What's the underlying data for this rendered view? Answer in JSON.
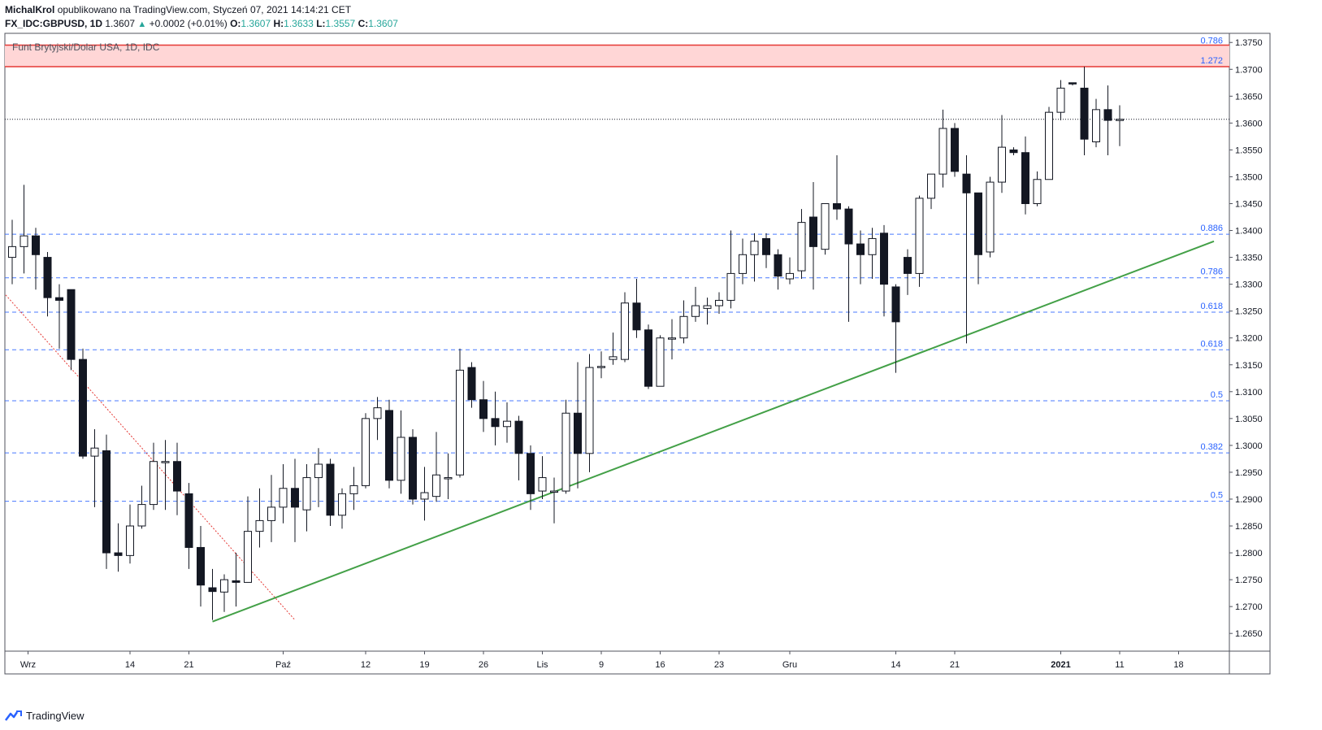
{
  "header": {
    "author": "MichalKrol",
    "published": "opublikowano na TradingView.com, Styczeń 07, 2021 14:14:21 CET",
    "symbol": "FX_IDC:GBPUSD, 1D",
    "last": "1.3607",
    "change": "+0.0002 (+0.01%)",
    "o_label": "O:",
    "o": "1.3607",
    "h_label": "H:",
    "h": "1.3633",
    "l_label": "L:",
    "l": "1.3557",
    "c_label": "C:",
    "c": "1.3607"
  },
  "footer": {
    "brand": "TradingView"
  },
  "chart_data": {
    "type": "candlestick",
    "title": "Funt Brytyjski/Dolar USA, 1D, IDC",
    "ylim": [
      1.2617,
      1.3767
    ],
    "y_ticks": [
      "1.3750",
      "1.3700",
      "1.3650",
      "1.3600",
      "1.3550",
      "1.3500",
      "1.3450",
      "1.3400",
      "1.3350",
      "1.3300",
      "1.3250",
      "1.3200",
      "1.3150",
      "1.3100",
      "1.3050",
      "1.3000",
      "1.2950",
      "1.2900",
      "1.2850",
      "1.2800",
      "1.2750",
      "1.2700",
      "1.2650"
    ],
    "x_ticks": [
      {
        "label": "Wrz",
        "bar": 1
      },
      {
        "label": "14",
        "bar": 10
      },
      {
        "label": "21",
        "bar": 15
      },
      {
        "label": "Paź",
        "bar": 23
      },
      {
        "label": "12",
        "bar": 30
      },
      {
        "label": "19",
        "bar": 35
      },
      {
        "label": "26",
        "bar": 40
      },
      {
        "label": "Lis",
        "bar": 45
      },
      {
        "label": "9",
        "bar": 50
      },
      {
        "label": "16",
        "bar": 55
      },
      {
        "label": "23",
        "bar": 60
      },
      {
        "label": "Gru",
        "bar": 66
      },
      {
        "label": "14",
        "bar": 75
      },
      {
        "label": "21",
        "bar": 80
      },
      {
        "label": "2021",
        "bar": 89
      },
      {
        "label": "11",
        "bar": 94
      },
      {
        "label": "18",
        "bar": 99
      }
    ],
    "fib_levels": [
      {
        "label": "0.886",
        "price": 1.3393
      },
      {
        "label": "0.786",
        "price": 1.3312
      },
      {
        "label": "0.618",
        "price": 1.3248
      },
      {
        "label": "0.618",
        "price": 1.3178
      },
      {
        "label": "0.5",
        "price": 1.3083
      },
      {
        "label": "0.382",
        "price": 1.2986
      },
      {
        "label": "0.5",
        "price": 1.2896
      }
    ],
    "resistance_zone": {
      "top_label": "0.786",
      "bottom_label": "1.272",
      "top": 1.3745,
      "bottom": 1.3705
    },
    "current_price": 1.3607,
    "uptrend_line": {
      "start": {
        "bar": 17,
        "price": 1.2672
      },
      "end": {
        "bar": 102,
        "price": 1.338
      }
    },
    "downtrend_line": {
      "start": {
        "bar": 0,
        "price": 1.328
      },
      "end": {
        "bar": 24,
        "price": 1.2675
      }
    },
    "candles": [
      {
        "o": 1.335,
        "h": 1.342,
        "l": 1.33,
        "c": 1.337
      },
      {
        "o": 1.337,
        "h": 1.3485,
        "l": 1.332,
        "c": 1.339
      },
      {
        "o": 1.339,
        "h": 1.3405,
        "l": 1.329,
        "c": 1.3355
      },
      {
        "o": 1.335,
        "h": 1.336,
        "l": 1.324,
        "c": 1.3275
      },
      {
        "o": 1.3275,
        "h": 1.33,
        "l": 1.318,
        "c": 1.327
      },
      {
        "o": 1.329,
        "h": 1.329,
        "l": 1.314,
        "c": 1.316
      },
      {
        "o": 1.316,
        "h": 1.318,
        "l": 1.2975,
        "c": 1.298
      },
      {
        "o": 1.298,
        "h": 1.303,
        "l": 1.2885,
        "c": 1.2995
      },
      {
        "o": 1.299,
        "h": 1.302,
        "l": 1.277,
        "c": 1.28
      },
      {
        "o": 1.28,
        "h": 1.2855,
        "l": 1.2765,
        "c": 1.2795
      },
      {
        "o": 1.2795,
        "h": 1.289,
        "l": 1.278,
        "c": 1.285
      },
      {
        "o": 1.285,
        "h": 1.2925,
        "l": 1.2845,
        "c": 1.289
      },
      {
        "o": 1.289,
        "h": 1.3005,
        "l": 1.288,
        "c": 1.297
      },
      {
        "o": 1.297,
        "h": 1.301,
        "l": 1.288,
        "c": 1.297
      },
      {
        "o": 1.297,
        "h": 1.3005,
        "l": 1.287,
        "c": 1.2915
      },
      {
        "o": 1.291,
        "h": 1.293,
        "l": 1.277,
        "c": 1.281
      },
      {
        "o": 1.281,
        "h": 1.285,
        "l": 1.27,
        "c": 1.274
      },
      {
        "o": 1.2735,
        "h": 1.277,
        "l": 1.2675,
        "c": 1.2728
      },
      {
        "o": 1.2727,
        "h": 1.276,
        "l": 1.269,
        "c": 1.275
      },
      {
        "o": 1.2748,
        "h": 1.28,
        "l": 1.27,
        "c": 1.2745
      },
      {
        "o": 1.2745,
        "h": 1.2905,
        "l": 1.2745,
        "c": 1.284
      },
      {
        "o": 1.284,
        "h": 1.292,
        "l": 1.281,
        "c": 1.286
      },
      {
        "o": 1.286,
        "h": 1.2945,
        "l": 1.282,
        "c": 1.2885
      },
      {
        "o": 1.2885,
        "h": 1.2965,
        "l": 1.2855,
        "c": 1.292
      },
      {
        "o": 1.292,
        "h": 1.2975,
        "l": 1.282,
        "c": 1.2885
      },
      {
        "o": 1.288,
        "h": 1.2965,
        "l": 1.284,
        "c": 1.294
      },
      {
        "o": 1.294,
        "h": 1.2995,
        "l": 1.2885,
        "c": 1.2965
      },
      {
        "o": 1.2965,
        "h": 1.2975,
        "l": 1.285,
        "c": 1.287
      },
      {
        "o": 1.287,
        "h": 1.292,
        "l": 1.2845,
        "c": 1.291
      },
      {
        "o": 1.291,
        "h": 1.296,
        "l": 1.288,
        "c": 1.2925
      },
      {
        "o": 1.2925,
        "h": 1.306,
        "l": 1.292,
        "c": 1.305
      },
      {
        "o": 1.305,
        "h": 1.309,
        "l": 1.301,
        "c": 1.307
      },
      {
        "o": 1.3065,
        "h": 1.3085,
        "l": 1.292,
        "c": 1.2935
      },
      {
        "o": 1.2935,
        "h": 1.3065,
        "l": 1.291,
        "c": 1.3015
      },
      {
        "o": 1.3015,
        "h": 1.303,
        "l": 1.289,
        "c": 1.29
      },
      {
        "o": 1.29,
        "h": 1.296,
        "l": 1.286,
        "c": 1.2912
      },
      {
        "o": 1.2905,
        "h": 1.3025,
        "l": 1.2895,
        "c": 1.2945
      },
      {
        "o": 1.294,
        "h": 1.2985,
        "l": 1.29,
        "c": 1.294
      },
      {
        "o": 1.2945,
        "h": 1.318,
        "l": 1.294,
        "c": 1.314
      },
      {
        "o": 1.3145,
        "h": 1.3155,
        "l": 1.307,
        "c": 1.3085
      },
      {
        "o": 1.3085,
        "h": 1.312,
        "l": 1.3025,
        "c": 1.305
      },
      {
        "o": 1.305,
        "h": 1.31,
        "l": 1.3,
        "c": 1.3035
      },
      {
        "o": 1.3035,
        "h": 1.308,
        "l": 1.3005,
        "c": 1.3045
      },
      {
        "o": 1.3045,
        "h": 1.3055,
        "l": 1.2935,
        "c": 1.2985
      },
      {
        "o": 1.2985,
        "h": 1.3,
        "l": 1.288,
        "c": 1.291
      },
      {
        "o": 1.2915,
        "h": 1.298,
        "l": 1.29,
        "c": 1.294
      },
      {
        "o": 1.2915,
        "h": 1.294,
        "l": 1.2855,
        "c": 1.2915
      },
      {
        "o": 1.2915,
        "h": 1.3085,
        "l": 1.291,
        "c": 1.306
      },
      {
        "o": 1.306,
        "h": 1.3155,
        "l": 1.292,
        "c": 1.2985
      },
      {
        "o": 1.2985,
        "h": 1.317,
        "l": 1.295,
        "c": 1.3145
      },
      {
        "o": 1.3145,
        "h": 1.3175,
        "l": 1.3125,
        "c": 1.3147
      },
      {
        "o": 1.316,
        "h": 1.321,
        "l": 1.315,
        "c": 1.3165
      },
      {
        "o": 1.316,
        "h": 1.3285,
        "l": 1.3155,
        "c": 1.3265
      },
      {
        "o": 1.3265,
        "h": 1.331,
        "l": 1.32,
        "c": 1.3215
      },
      {
        "o": 1.3215,
        "h": 1.3225,
        "l": 1.3105,
        "c": 1.311
      },
      {
        "o": 1.311,
        "h": 1.3205,
        "l": 1.311,
        "c": 1.32
      },
      {
        "o": 1.32,
        "h": 1.3235,
        "l": 1.316,
        "c": 1.32
      },
      {
        "o": 1.32,
        "h": 1.327,
        "l": 1.319,
        "c": 1.324
      },
      {
        "o": 1.324,
        "h": 1.3295,
        "l": 1.323,
        "c": 1.326
      },
      {
        "o": 1.3255,
        "h": 1.3275,
        "l": 1.3225,
        "c": 1.326
      },
      {
        "o": 1.326,
        "h": 1.3285,
        "l": 1.3245,
        "c": 1.327
      },
      {
        "o": 1.327,
        "h": 1.34,
        "l": 1.3255,
        "c": 1.332
      },
      {
        "o": 1.332,
        "h": 1.3385,
        "l": 1.33,
        "c": 1.3355
      },
      {
        "o": 1.3355,
        "h": 1.3395,
        "l": 1.3305,
        "c": 1.338
      },
      {
        "o": 1.3385,
        "h": 1.3395,
        "l": 1.333,
        "c": 1.3355
      },
      {
        "o": 1.3355,
        "h": 1.3365,
        "l": 1.329,
        "c": 1.3315
      },
      {
        "o": 1.331,
        "h": 1.335,
        "l": 1.33,
        "c": 1.332
      },
      {
        "o": 1.3325,
        "h": 1.344,
        "l": 1.331,
        "c": 1.3415
      },
      {
        "o": 1.3425,
        "h": 1.349,
        "l": 1.329,
        "c": 1.337
      },
      {
        "o": 1.3365,
        "h": 1.3445,
        "l": 1.3355,
        "c": 1.345
      },
      {
        "o": 1.345,
        "h": 1.354,
        "l": 1.342,
        "c": 1.344
      },
      {
        "o": 1.344,
        "h": 1.3445,
        "l": 1.323,
        "c": 1.3375
      },
      {
        "o": 1.3375,
        "h": 1.34,
        "l": 1.33,
        "c": 1.3355
      },
      {
        "o": 1.3355,
        "h": 1.3405,
        "l": 1.331,
        "c": 1.3385
      },
      {
        "o": 1.3395,
        "h": 1.341,
        "l": 1.324,
        "c": 1.33
      },
      {
        "o": 1.3295,
        "h": 1.33,
        "l": 1.3135,
        "c": 1.323
      },
      {
        "o": 1.335,
        "h": 1.3365,
        "l": 1.328,
        "c": 1.332
      },
      {
        "o": 1.332,
        "h": 1.3465,
        "l": 1.3295,
        "c": 1.346
      },
      {
        "o": 1.346,
        "h": 1.3505,
        "l": 1.344,
        "c": 1.3505
      },
      {
        "o": 1.3505,
        "h": 1.3625,
        "l": 1.348,
        "c": 1.359
      },
      {
        "o": 1.359,
        "h": 1.36,
        "l": 1.35,
        "c": 1.351
      },
      {
        "o": 1.3505,
        "h": 1.354,
        "l": 1.319,
        "c": 1.347
      },
      {
        "o": 1.347,
        "h": 1.347,
        "l": 1.33,
        "c": 1.3355
      },
      {
        "o": 1.336,
        "h": 1.35,
        "l": 1.335,
        "c": 1.349
      },
      {
        "o": 1.349,
        "h": 1.3615,
        "l": 1.347,
        "c": 1.3555
      },
      {
        "o": 1.355,
        "h": 1.3555,
        "l": 1.354,
        "c": 1.3545
      },
      {
        "o": 1.3545,
        "h": 1.3575,
        "l": 1.343,
        "c": 1.345
      },
      {
        "o": 1.345,
        "h": 1.351,
        "l": 1.3445,
        "c": 1.3495
      },
      {
        "o": 1.3495,
        "h": 1.363,
        "l": 1.3495,
        "c": 1.362
      },
      {
        "o": 1.362,
        "h": 1.368,
        "l": 1.3605,
        "c": 1.3665
      },
      {
        "o": 1.3675,
        "h": 1.3675,
        "l": 1.367,
        "c": 1.3673
      },
      {
        "o": 1.3665,
        "h": 1.3705,
        "l": 1.354,
        "c": 1.357
      },
      {
        "o": 1.3565,
        "h": 1.3645,
        "l": 1.3555,
        "c": 1.3625
      },
      {
        "o": 1.3625,
        "h": 1.367,
        "l": 1.354,
        "c": 1.3605
      },
      {
        "o": 1.3607,
        "h": 1.3633,
        "l": 1.3557,
        "c": 1.3607
      }
    ]
  }
}
